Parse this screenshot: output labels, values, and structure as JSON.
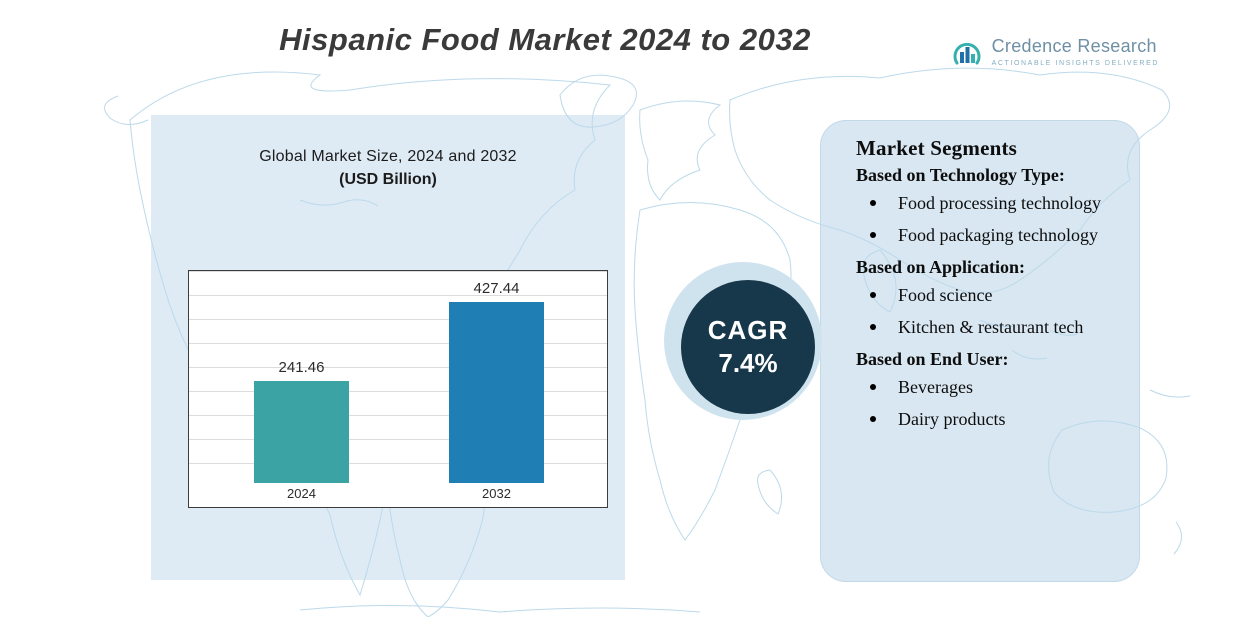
{
  "page": {
    "title": "Hispanic Food Market 2024 to 2032"
  },
  "logo": {
    "name": "Credence Research",
    "tagline": "Actionable Insights Delivered"
  },
  "chart_data": {
    "type": "bar",
    "title": "Global Market Size, 2024 and 2032",
    "subtitle": "(USD Billion)",
    "categories": [
      "2024",
      "2032"
    ],
    "values": [
      241.46,
      427.44
    ],
    "value_labels": [
      "241.46",
      "427.44"
    ],
    "bar_colors": [
      "#3ba3a3",
      "#1f7fb5"
    ],
    "ylabel": "",
    "xlabel": "",
    "ylim": [
      0,
      500
    ],
    "grid": true,
    "legend": "none",
    "unit": "USD Billion"
  },
  "cagr_badge": {
    "label": "CAGR",
    "value": "7.4%",
    "background": "#17384a"
  },
  "segments_panel": {
    "title": "Market Segments",
    "sections": [
      {
        "heading": "Based on Technology Type:",
        "bullets": [
          "Food processing technology",
          "Food packaging technology"
        ]
      },
      {
        "heading": "Based on Application:",
        "bullets": [
          "Food science",
          "Kitchen & restaurant tech"
        ]
      },
      {
        "heading": "Based on End User:",
        "bullets": [
          "Beverages",
          "Dairy products"
        ]
      }
    ]
  },
  "colors": {
    "panel_blue": "#d8e7f2",
    "map_line": "#bcd9ea",
    "bar_2024": "#3ba3a3",
    "bar_2032": "#1f7fb5",
    "cagr_navy": "#17384a"
  }
}
